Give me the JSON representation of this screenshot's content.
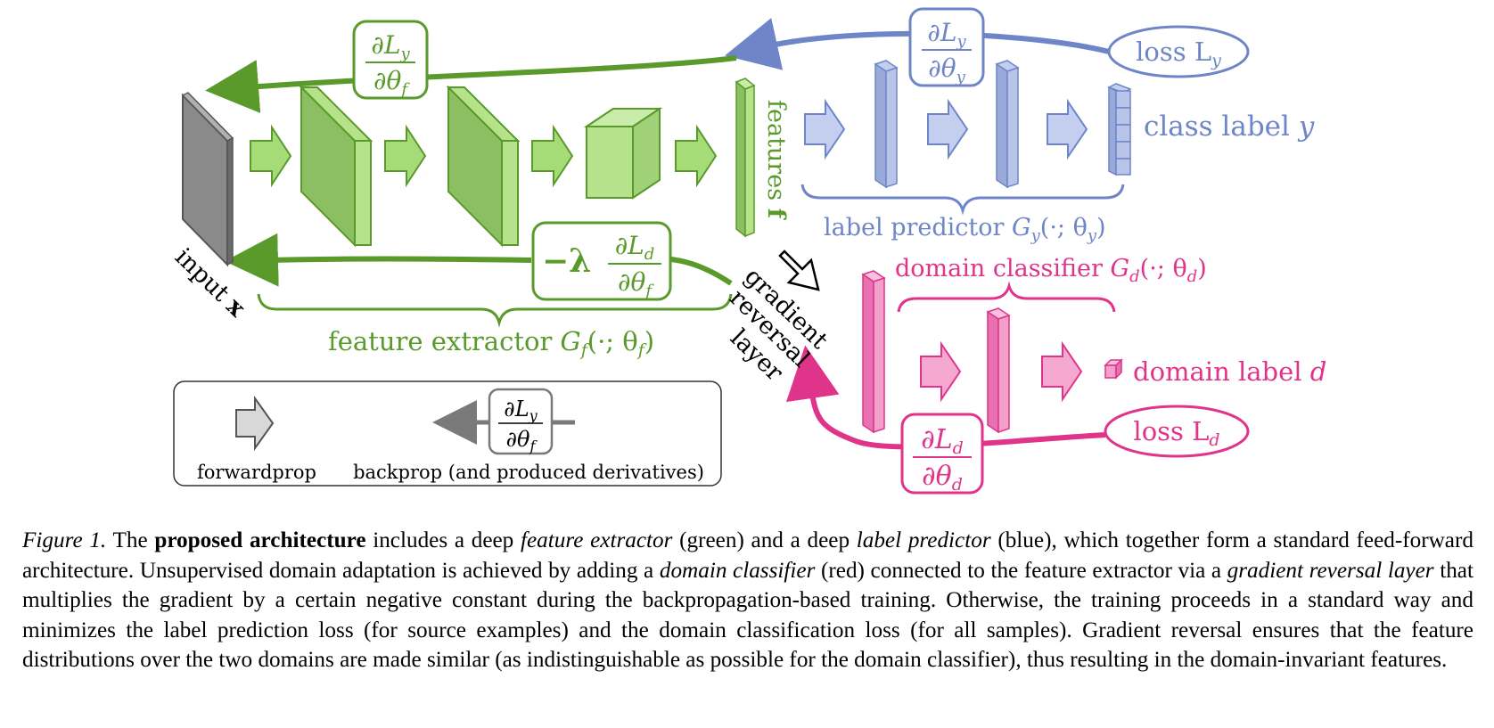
{
  "colors": {
    "green": "#5a9a2b",
    "green_fill": "#b6e28c",
    "blue": "#6e86c8",
    "blue_fill": "#b8c4e8",
    "pink": "#e0338a",
    "pink_fill": "#f3a0cb",
    "gray": "#7a7a7a"
  },
  "labels": {
    "input": "input",
    "input_var": "x",
    "features": "features",
    "features_var": "f",
    "class_label": "class label",
    "class_label_var": "y",
    "label_predictor": "label predictor",
    "label_predictor_math": "G",
    "label_predictor_sub": "y",
    "label_predictor_args": "(·; θ",
    "label_predictor_args_sub": "y",
    "domain_classifier": "domain classifier",
    "domain_classifier_math": "G",
    "domain_classifier_sub": "d",
    "domain_classifier_args": "(·; θ",
    "domain_classifier_args_sub": "d",
    "domain_label": "domain label",
    "domain_label_var": "d",
    "feature_extractor": "feature extractor",
    "feature_extractor_math": "G",
    "feature_extractor_sub": "f",
    "feature_extractor_args": "(·; θ",
    "feature_extractor_args_sub": "f",
    "grl_line1": "gradient",
    "grl_line2": "reversal",
    "grl_line3": "layer",
    "loss_y": "loss L",
    "loss_y_sub": "y",
    "loss_d": "loss L",
    "loss_d_sub": "d",
    "close_paren": ")",
    "partial": "∂",
    "L": "L",
    "theta": "θ",
    "neg_lambda": "−λ",
    "sub_y": "y",
    "sub_f": "f",
    "sub_d": "d"
  },
  "legend": {
    "forwardprop": "forwardprop",
    "backprop": "backprop (and produced derivatives)"
  },
  "caption": {
    "fig": "Figure 1.",
    "t1": " The ",
    "b1": "proposed architecture",
    "t2": " includes a deep ",
    "i1": "feature extractor",
    "t3": " (green) and a deep ",
    "i2": "label predictor",
    "t4": " (blue), which together form a standard feed-forward architecture. Unsupervised domain adaptation is achieved by adding a ",
    "i3": "domain classifier",
    "t5": " (red) connected to the feature extractor via a ",
    "i4": "gradient reversal layer",
    "t6": " that multiplies the gradient by a certain negative constant during the backpropagation-based training. Otherwise, the training proceeds in a standard way and minimizes the label prediction loss (for source examples) and the domain classification loss (for all samples). Gradient reversal ensures that the feature distributions over the two domains are made similar (as indistinguishable as possible for the domain classifier), thus resulting in the domain-invariant features."
  }
}
